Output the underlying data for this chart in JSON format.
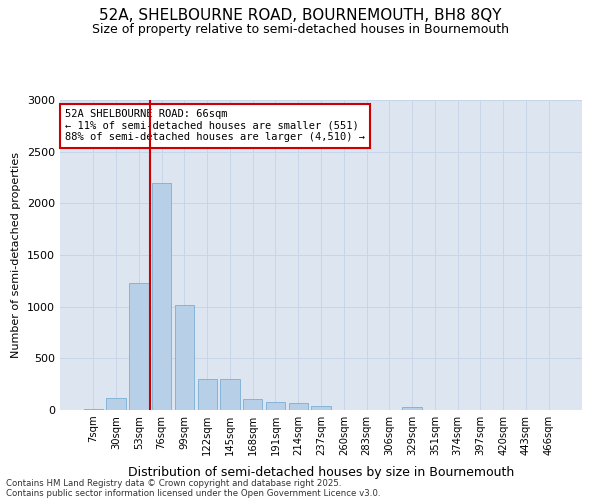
{
  "title_line1": "52A, SHELBOURNE ROAD, BOURNEMOUTH, BH8 8QY",
  "title_line2": "Size of property relative to semi-detached houses in Bournemouth",
  "xlabel": "Distribution of semi-detached houses by size in Bournemouth",
  "ylabel": "Number of semi-detached properties",
  "categories": [
    "7sqm",
    "30sqm",
    "53sqm",
    "76sqm",
    "99sqm",
    "122sqm",
    "145sqm",
    "168sqm",
    "191sqm",
    "214sqm",
    "237sqm",
    "260sqm",
    "283sqm",
    "306sqm",
    "329sqm",
    "351sqm",
    "374sqm",
    "397sqm",
    "420sqm",
    "443sqm",
    "466sqm"
  ],
  "values": [
    5,
    120,
    1230,
    2200,
    1020,
    300,
    300,
    105,
    80,
    65,
    35,
    0,
    0,
    0,
    30,
    0,
    0,
    0,
    0,
    0,
    0
  ],
  "bar_color": "#b8cfe8",
  "bar_edge_color": "#7aaed4",
  "grid_color": "#c8d4e8",
  "background_color": "#dde5f0",
  "vline_color": "#cc0000",
  "vline_pos": 2.5,
  "annotation_title": "52A SHELBOURNE ROAD: 66sqm",
  "annotation_line2": "← 11% of semi-detached houses are smaller (551)",
  "annotation_line3": "88% of semi-detached houses are larger (4,510) →",
  "annotation_box_color": "#cc0000",
  "ylim": [
    0,
    3000
  ],
  "yticks": [
    0,
    500,
    1000,
    1500,
    2000,
    2500,
    3000
  ],
  "footnote1": "Contains HM Land Registry data © Crown copyright and database right 2025.",
  "footnote2": "Contains public sector information licensed under the Open Government Licence v3.0."
}
